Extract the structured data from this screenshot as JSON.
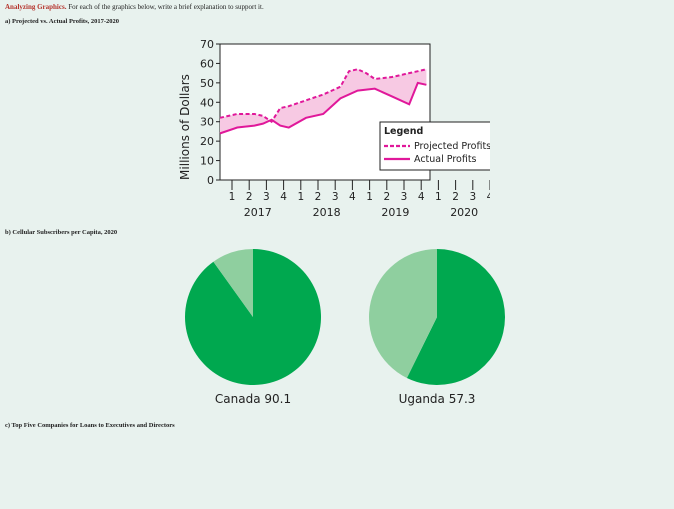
{
  "header": {
    "title": "Analyzing Graphics.",
    "instructions": "For each of the graphics below, write a brief explanation to support it."
  },
  "sections": {
    "a": "a)  Projected vs. Actual Profits, 2017-2020",
    "b": "b)  Cellular Subscribers per Capita, 2020",
    "c": "c)  Top Five Companies for Loans to Executives and Directors"
  },
  "colors": {
    "background": "#e8f2ee",
    "projected": "#e0189a",
    "actual": "#e0189a",
    "band_fill": "#f7c9e3",
    "pie_dark": "#00a84f",
    "pie_light": "#8fcf9f"
  },
  "chart_data": [
    {
      "type": "line",
      "title": "",
      "ylabel": "Millions of Dollars",
      "xlabel": "",
      "ylim": [
        0,
        70
      ],
      "yticks": [
        0,
        10,
        20,
        30,
        40,
        50,
        60,
        70
      ],
      "quarters": [
        "1",
        "2",
        "3",
        "4",
        "1",
        "2",
        "3",
        "4",
        "1",
        "2",
        "3",
        "4",
        "1",
        "2",
        "3",
        "4"
      ],
      "years": [
        "2017",
        "2018",
        "2019",
        "2020"
      ],
      "grid": false,
      "legend": {
        "title": "Legend",
        "position": "bottom-right",
        "entries": [
          "Projected Profits",
          "Actual Profits"
        ]
      },
      "series": [
        {
          "name": "Projected Profits",
          "style": "dashed",
          "x": [
            0,
            1,
            2,
            2.5,
            3,
            3.5,
            4,
            5,
            6,
            7,
            7.5,
            8,
            8.5,
            9,
            10,
            11,
            12
          ],
          "values": [
            32,
            34,
            34,
            33,
            30,
            37,
            38,
            41,
            44,
            48,
            56,
            57,
            55,
            52,
            53,
            55,
            57
          ]
        },
        {
          "name": "Actual Profits",
          "style": "solid",
          "x": [
            0,
            1,
            2,
            2.5,
            3,
            3.5,
            4,
            5,
            6,
            7,
            8,
            9,
            10,
            11,
            11.5,
            12
          ],
          "values": [
            24,
            27,
            28,
            29,
            31,
            28,
            27,
            32,
            34,
            42,
            46,
            47,
            43,
            39,
            50,
            49
          ]
        }
      ]
    },
    {
      "type": "pie",
      "label": "Canada 90.1",
      "slices": [
        {
          "value": 90.1,
          "color": "dark"
        },
        {
          "value": 9.9,
          "color": "light"
        }
      ]
    },
    {
      "type": "pie",
      "label": "Uganda 57.3",
      "slices": [
        {
          "value": 57.3,
          "color": "dark"
        },
        {
          "value": 42.7,
          "color": "light"
        }
      ]
    }
  ]
}
